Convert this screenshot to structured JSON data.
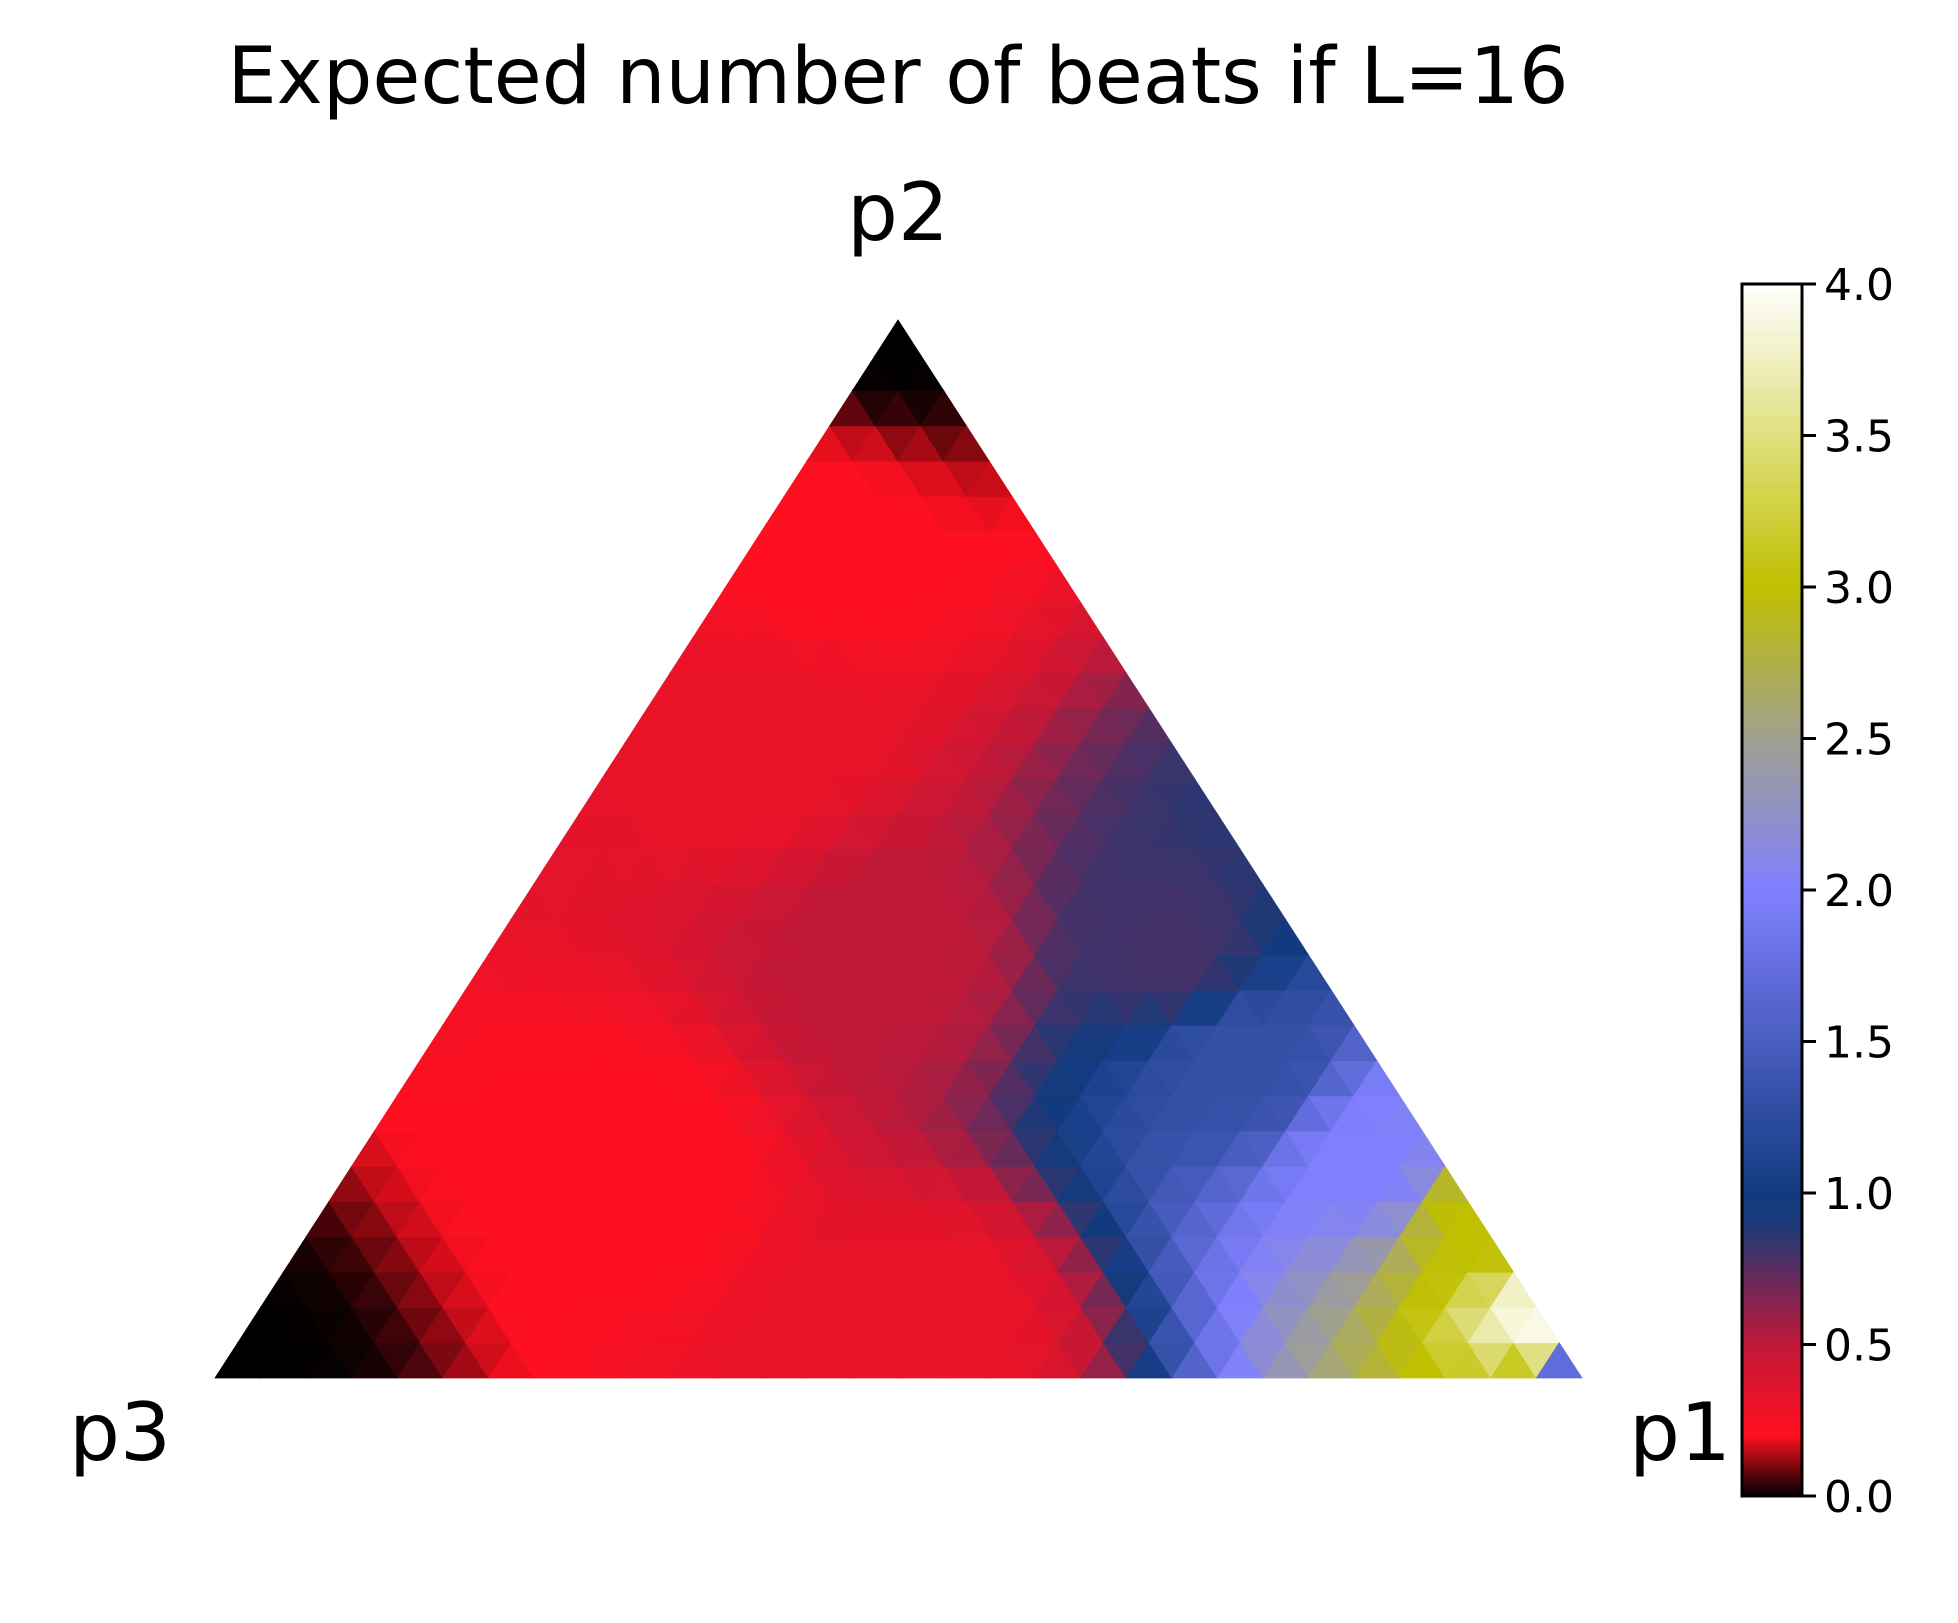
{
  "chart_data": {
    "type": "heatmap",
    "subtype": "ternary",
    "title": "Expected number of beats if L=16",
    "vertices": {
      "top": "p2",
      "bottom_left": "p3",
      "bottom_right": "p1"
    },
    "colorbar": {
      "min": 0.0,
      "max": 4.0,
      "ticks": [
        "0.0",
        "0.5",
        "1.0",
        "1.5",
        "2.0",
        "2.5",
        "3.0",
        "3.5",
        "4.0"
      ],
      "tick_values": [
        0.0,
        0.5,
        1.0,
        1.5,
        2.0,
        2.5,
        3.0,
        3.5,
        4.0
      ],
      "colormap": [
        {
          "v": 0.0,
          "color": "#000000"
        },
        {
          "v": 0.2,
          "color": "#ff1020"
        },
        {
          "v": 0.5,
          "color": "#c01838"
        },
        {
          "v": 0.9,
          "color": "#1a3a78"
        },
        {
          "v": 1.0,
          "color": "#123a80"
        },
        {
          "v": 2.0,
          "color": "#8080ff"
        },
        {
          "v": 2.5,
          "color": "#a0a090"
        },
        {
          "v": 3.0,
          "color": "#c0c000"
        },
        {
          "v": 4.0,
          "color": "#ffffff"
        }
      ]
    },
    "samples": [
      {
        "p1": 0.0,
        "p2": 1.0,
        "p3": 0.0,
        "value": 0.0
      },
      {
        "p1": 0.05,
        "p2": 0.8,
        "p3": 0.15,
        "value": 0.2
      },
      {
        "p1": 0.1,
        "p2": 0.6,
        "p3": 0.3,
        "value": 0.3
      },
      {
        "p1": 0.3,
        "p2": 0.4,
        "p3": 0.3,
        "value": 0.5
      },
      {
        "p1": 0.5,
        "p2": 0.4,
        "p3": 0.1,
        "value": 0.8
      },
      {
        "p1": 0.6,
        "p2": 0.3,
        "p3": 0.1,
        "value": 1.3
      },
      {
        "p1": 0.75,
        "p2": 0.2,
        "p3": 0.05,
        "value": 2.0
      },
      {
        "p1": 0.85,
        "p2": 0.15,
        "p3": 0.0,
        "value": 3.0
      },
      {
        "p1": 0.95,
        "p2": 0.05,
        "p3": 0.0,
        "value": 3.9
      },
      {
        "p1": 0.0,
        "p2": 0.0,
        "p3": 1.0,
        "value": 0.0
      },
      {
        "p1": 0.2,
        "p2": 0.2,
        "p3": 0.6,
        "value": 0.2
      },
      {
        "p1": 0.5,
        "p2": 0.05,
        "p3": 0.45,
        "value": 0.3
      },
      {
        "p1": 1.0,
        "p2": 0.0,
        "p3": 0.0,
        "value": 1.5
      }
    ]
  }
}
